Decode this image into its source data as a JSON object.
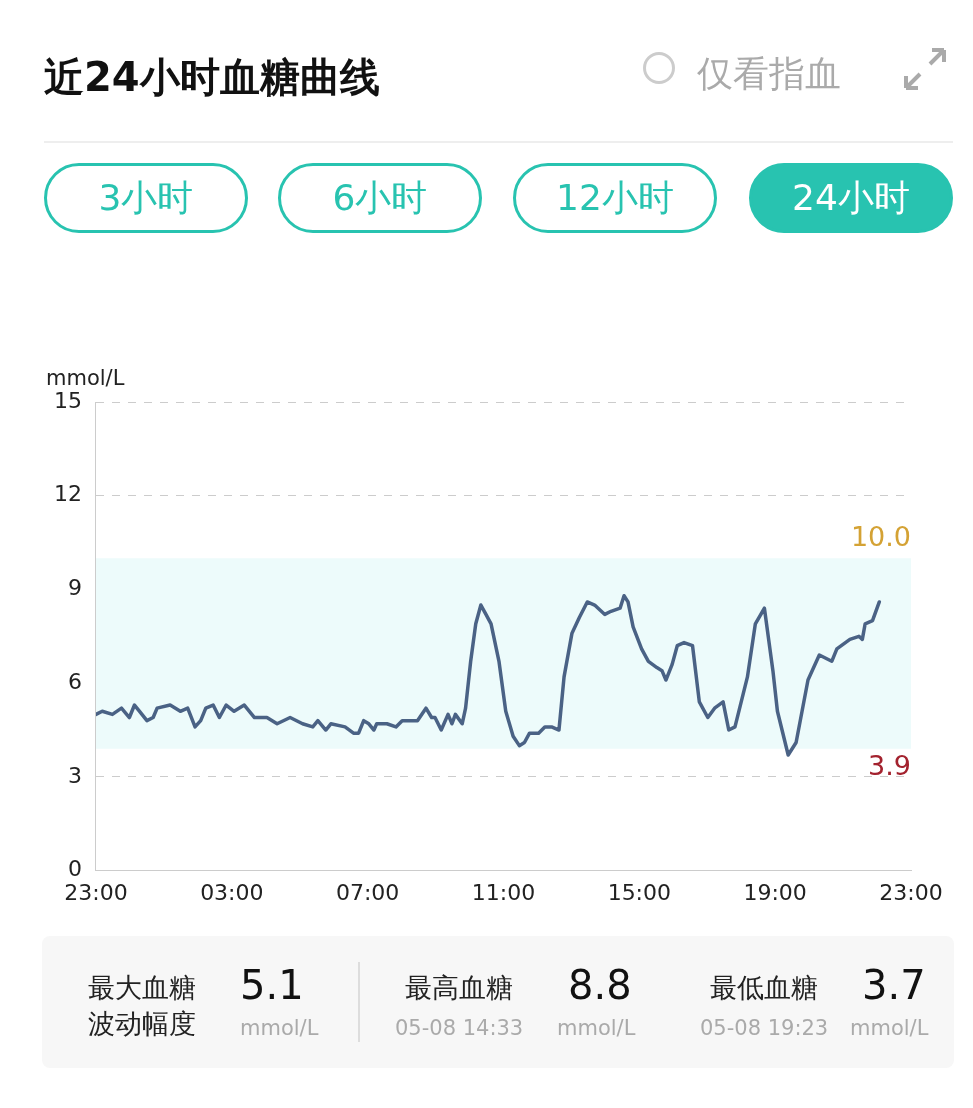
{
  "chart_data": {
    "type": "line",
    "title": "近24小时血糖曲线",
    "ylabel": "mmol/L",
    "annotations": [
      "仅看指血",
      "3小时",
      "6小时",
      "12小时",
      "24小时",
      "最大血糖波动幅度",
      "5.1",
      "mmol/L",
      "最高血糖",
      "8.8",
      "05-08 14:33",
      "mmol/L",
      "最低血糖",
      "3.7",
      "05-08 19:23",
      "mmol/L",
      {
        "text": "10.0",
        "x": "--05-08T23:00",
        "y": 10
      },
      {
        "text": "3.9",
        "x": "--05-08T23:00",
        "y": 3.9
      }
    ],
    "xlim": [
      "--05-07T23:00",
      "--05-08T23:00"
    ],
    "xticks": [
      {
        "value": "--05-07T23:00",
        "label": "23:00"
      },
      {
        "value": "--05-08T03:00",
        "label": "03:00"
      },
      {
        "value": "--05-08T07:00",
        "label": "07:00"
      },
      {
        "value": "--05-08T11:00",
        "label": "11:00"
      },
      {
        "value": "--05-08T15:00",
        "label": "15:00"
      },
      {
        "value": "--05-08T19:00",
        "label": "19:00"
      },
      {
        "value": "--05-08T23:00",
        "label": "23:00"
      }
    ],
    "ylim": [
      0,
      15
    ],
    "yticks": [
      0,
      3,
      6,
      9,
      12,
      15
    ],
    "grid": "y",
    "legend": false,
    "marker": "none",
    "line_style": "solid",
    "bands": [
      {
        "axis": "y",
        "from": 3.9,
        "to": 10,
        "color": "#edfbfb"
      }
    ],
    "series": [
      {
        "color": "#4a6285",
        "x": [
          "--05-07T23:00",
          "--05-07T23:11",
          "--05-07T23:29",
          "--05-07T23:45",
          "--05-07T23:59",
          "--05-08T00:08",
          "--05-08T00:17",
          "--05-08T00:30",
          "--05-08T00:41",
          "--05-08T00:48",
          "--05-08T01:11",
          "--05-08T01:29",
          "--05-08T01:42",
          "--05-08T01:55",
          "--05-08T02:05",
          "--05-08T02:14",
          "--05-08T02:27",
          "--05-08T02:38",
          "--05-08T02:50",
          "--05-08T03:04",
          "--05-08T03:22",
          "--05-08T03:40",
          "--05-08T04:02",
          "--05-08T04:20",
          "--05-08T04:43",
          "--05-08T05:05",
          "--05-08T05:23",
          "--05-08T05:32",
          "--05-08T05:46",
          "--05-08T05:55",
          "--05-08T06:20",
          "--05-08T06:35",
          "--05-08T06:44",
          "--05-08T06:53",
          "--05-08T07:02",
          "--05-08T07:11",
          "--05-08T07:16",
          "--05-08T07:34",
          "--05-08T07:50",
          "--05-08T08:01",
          "--05-08T08:28",
          "--05-08T08:43",
          "--05-08T08:53",
          "--05-08T08:59",
          "--05-08T09:10",
          "--05-08T09:22",
          "--05-08T09:29",
          "--05-08T09:35",
          "--05-08T09:47",
          "--05-08T09:53",
          "--05-08T10:02",
          "--05-08T10:11",
          "--05-08T10:20",
          "--05-08T10:29",
          "--05-08T10:38",
          "--05-08T10:52",
          "--05-08T11:04",
          "--05-08T11:17",
          "--05-08T11:28",
          "--05-08T11:37",
          "--05-08T11:46",
          "--05-08T12:02",
          "--05-08T12:13",
          "--05-08T12:25",
          "--05-08T12:38",
          "--05-08T12:47",
          "--05-08T13:01",
          "--05-08T13:14",
          "--05-08T13:28",
          "--05-08T13:41",
          "--05-08T13:59",
          "--05-08T14:10",
          "--05-08T14:26",
          "--05-08T14:33",
          "--05-08T14:40",
          "--05-08T14:49",
          "--05-08T15:04",
          "--05-08T15:16",
          "--05-08T15:31",
          "--05-08T15:40",
          "--05-08T15:47",
          "--05-08T15:58",
          "--05-08T16:07",
          "--05-08T16:19",
          "--05-08T16:34",
          "--05-08T16:46",
          "--05-08T17:01",
          "--05-08T17:13",
          "--05-08T17:28",
          "--05-08T17:38",
          "--05-08T17:49",
          "--05-08T18:11",
          "--05-08T18:25",
          "--05-08T18:41",
          "--05-08T18:56",
          "--05-08T19:04",
          "--05-08T19:23",
          "--05-08T19:37",
          "--05-08T19:58",
          "--05-08T20:18",
          "--05-08T20:40",
          "--05-08T20:49",
          "--05-08T21:12",
          "--05-08T21:28",
          "--05-08T21:34",
          "--05-08T21:39",
          "--05-08T21:52",
          "--05-08T22:04"
        ],
        "values": [
          5.0,
          5.1,
          5.0,
          5.2,
          4.9,
          5.3,
          5.1,
          4.8,
          4.9,
          5.2,
          5.3,
          5.1,
          5.2,
          4.6,
          4.8,
          5.2,
          5.3,
          4.9,
          5.3,
          5.1,
          5.3,
          4.9,
          4.9,
          4.7,
          4.9,
          4.7,
          4.6,
          4.8,
          4.5,
          4.7,
          4.6,
          4.4,
          4.4,
          4.8,
          4.7,
          4.5,
          4.7,
          4.7,
          4.6,
          4.8,
          4.8,
          5.2,
          4.9,
          4.9,
          4.5,
          5.0,
          4.7,
          5.0,
          4.7,
          5.2,
          6.7,
          7.9,
          8.5,
          8.2,
          7.9,
          6.7,
          5.1,
          4.3,
          4.0,
          4.1,
          4.4,
          4.4,
          4.6,
          4.6,
          4.5,
          6.2,
          7.6,
          8.1,
          8.6,
          8.5,
          8.2,
          8.3,
          8.4,
          8.8,
          8.6,
          7.8,
          7.1,
          6.7,
          6.5,
          6.4,
          6.1,
          6.6,
          7.2,
          7.3,
          7.2,
          5.4,
          4.9,
          5.2,
          5.4,
          4.5,
          4.6,
          6.2,
          7.9,
          8.4,
          6.4,
          5.1,
          3.7,
          4.1,
          6.1,
          6.9,
          6.7,
          7.1,
          7.4,
          7.5,
          7.4,
          7.9,
          8.0,
          8.6
        ]
      }
    ]
  }
}
